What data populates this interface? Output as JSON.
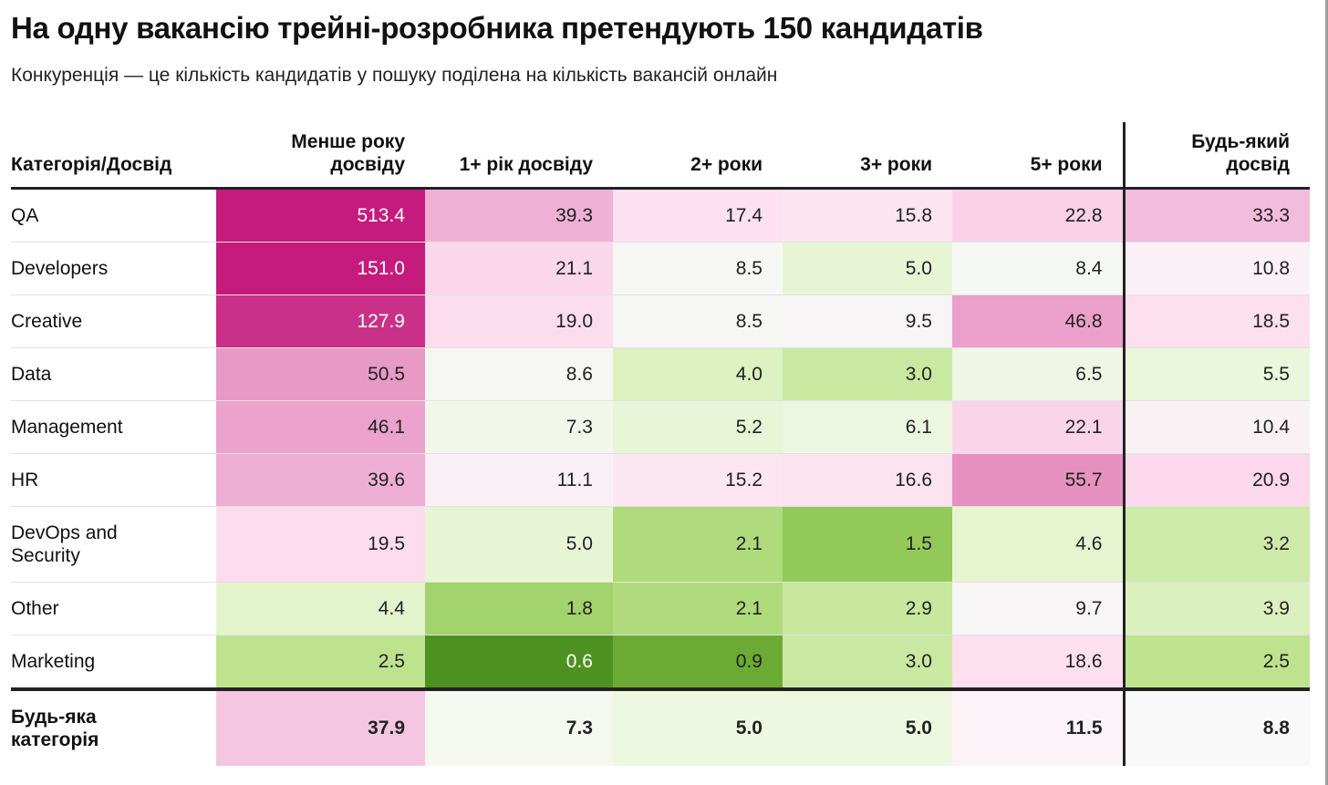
{
  "title": "На одну вакансію трейні-розробника претендують 150 кандидатів",
  "subtitle": "Конкуренція — це кількість кандидатів у пошуку поділена на кількість вакансій онлайн",
  "chart_data": {
    "type": "heatmap",
    "row_header": "Категорія/Досвід",
    "columns": [
      "Менше року досвіду",
      "1+ рік досвіду",
      "2+ роки",
      "3+ роки",
      "5+ роки",
      "Будь-який досвід"
    ],
    "rows": [
      {
        "label": "QA",
        "values": [
          513.4,
          39.3,
          17.4,
          15.8,
          22.8,
          33.3
        ]
      },
      {
        "label": "Developers",
        "values": [
          151.0,
          21.1,
          8.5,
          5.0,
          8.4,
          10.8
        ]
      },
      {
        "label": "Creative",
        "values": [
          127.9,
          19.0,
          8.5,
          9.5,
          46.8,
          18.5
        ]
      },
      {
        "label": "Data",
        "values": [
          50.5,
          8.6,
          4.0,
          3.0,
          6.5,
          5.5
        ]
      },
      {
        "label": "Management",
        "values": [
          46.1,
          7.3,
          5.2,
          6.1,
          22.1,
          10.4
        ]
      },
      {
        "label": "HR",
        "values": [
          39.6,
          11.1,
          15.2,
          16.6,
          55.7,
          20.9
        ]
      },
      {
        "label": "DevOps and Security",
        "values": [
          19.5,
          5.0,
          2.1,
          1.5,
          4.6,
          3.2
        ]
      },
      {
        "label": "Other",
        "values": [
          4.4,
          1.8,
          2.1,
          2.9,
          9.7,
          3.9
        ]
      },
      {
        "label": "Marketing",
        "values": [
          2.5,
          0.6,
          0.9,
          3.0,
          18.6,
          2.5
        ]
      }
    ],
    "total_row": {
      "label": "Будь-яка категорія",
      "values": [
        37.9,
        7.3,
        5.0,
        5.0,
        11.5,
        8.8
      ]
    },
    "color_scale": {
      "low": "#4d9221",
      "mid": "#f7f7f7",
      "high": "#c51b7d"
    }
  }
}
